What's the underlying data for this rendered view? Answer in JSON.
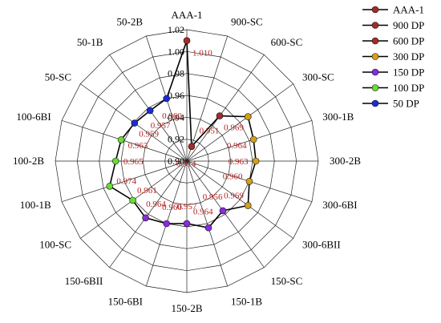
{
  "chart_data": {
    "type": "radar",
    "title": "",
    "categories": [
      "AAA-1",
      "900-SC",
      "600-SC",
      "300-SC",
      "300-1B",
      "300-2B",
      "300-6BI",
      "300-6BII",
      "150-SC",
      "150-1B",
      "150-2B",
      "150-6BI",
      "150-6BII",
      "100-SC",
      "100-1B",
      "100-2B",
      "100-6BI",
      "50-SC",
      "50-1B",
      "50-2B"
    ],
    "rlim": [
      0.9,
      1.02
    ],
    "rticks": [
      "0.90",
      "0.92",
      "0.94",
      "0.96",
      "0.98",
      "1.00",
      "1.02"
    ],
    "grid": true,
    "legend_position": "top-right",
    "trace_color": "#000000",
    "series": [
      {
        "name": "AAA-1",
        "color": "#a52a2a",
        "points": [
          {
            "cat": "AAA-1",
            "value": 1.01,
            "label": "1.010"
          }
        ]
      },
      {
        "name": "900 DP",
        "color": "#a52a2a",
        "points": [
          {
            "cat": "900-SC",
            "value": 0.914,
            "label": "0.914"
          }
        ]
      },
      {
        "name": "600 DP",
        "color": "#a52a2a",
        "points": [
          {
            "cat": "600-SC",
            "value": 0.951,
            "label": "0.951"
          }
        ]
      },
      {
        "name": "300 DP",
        "color": "#d4a017",
        "points": [
          {
            "cat": "300-SC",
            "value": 0.969,
            "label": "0.969"
          },
          {
            "cat": "300-1B",
            "value": 0.964,
            "label": "0.964"
          },
          {
            "cat": "300-2B",
            "value": 0.963,
            "label": "0.963"
          },
          {
            "cat": "300-6BI",
            "value": 0.96,
            "label": "0.960"
          },
          {
            "cat": "300-6BII",
            "value": 0.969,
            "label": "0.969"
          }
        ]
      },
      {
        "name": "150 DP",
        "color": "#8a2be2",
        "points": [
          {
            "cat": "150-SC",
            "value": 0.956,
            "label": "0.956"
          },
          {
            "cat": "150-1B",
            "value": 0.964,
            "label": "0.964"
          },
          {
            "cat": "150-2B",
            "value": 0.957,
            "label": "0.957"
          },
          {
            "cat": "150-6BI",
            "value": 0.96,
            "label": "0.960"
          },
          {
            "cat": "150-6BII",
            "value": 0.964,
            "label": "0.964"
          }
        ]
      },
      {
        "name": "100 DP",
        "color": "#66dd33",
        "points": [
          {
            "cat": "100-SC",
            "value": 0.961,
            "label": "0.961"
          },
          {
            "cat": "100-1B",
            "value": 0.974,
            "label": "0.974"
          },
          {
            "cat": "100-2B",
            "value": 0.965,
            "label": "0.965"
          },
          {
            "cat": "100-6BI",
            "value": 0.963,
            "label": "0.963"
          }
        ]
      },
      {
        "name": "50 DP",
        "color": "#1a2bd8",
        "points": [
          {
            "cat": "50-SC",
            "value": 0.959,
            "label": "0.959"
          },
          {
            "cat": "50-1B",
            "value": 0.957,
            "label": "0.957"
          },
          {
            "cat": "50-2B",
            "value": 0.96,
            "label": "0.960"
          }
        ]
      }
    ]
  }
}
